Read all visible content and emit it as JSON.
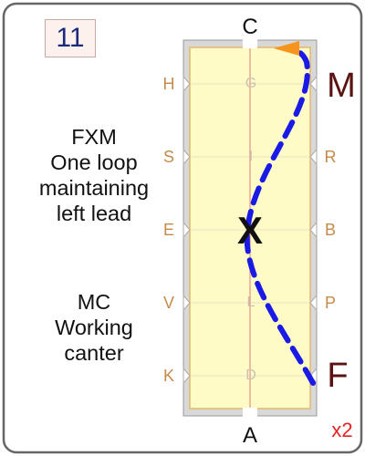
{
  "card": {
    "number": "11",
    "frame_color": "#666666",
    "text_blocks": [
      {
        "id": "fxm",
        "lines": [
          "FXM",
          "One loop",
          "maintaining",
          "left lead"
        ]
      },
      {
        "id": "mc",
        "lines": [
          "MC",
          "Working",
          "canter"
        ]
      }
    ],
    "multiplier": "x2"
  },
  "arena": {
    "fill_color": "#fefbc6",
    "border_color": "#e2b76c",
    "outer_color": "#d8d8d8",
    "centerline_color": "#e27b7b",
    "letters": {
      "top": "C",
      "bottom": "A",
      "left_side": [
        "H",
        "S",
        "E",
        "V",
        "K"
      ],
      "right_side": [
        "M",
        "R",
        "B",
        "P",
        "F"
      ],
      "centerline": [
        "G",
        "I",
        "L",
        "D"
      ]
    },
    "path": {
      "style": "dashed",
      "color": "#1a1ae6",
      "start_label": "F",
      "end_label": "M",
      "crossing_mark": "X",
      "arrow_color": "#f7941d"
    }
  }
}
